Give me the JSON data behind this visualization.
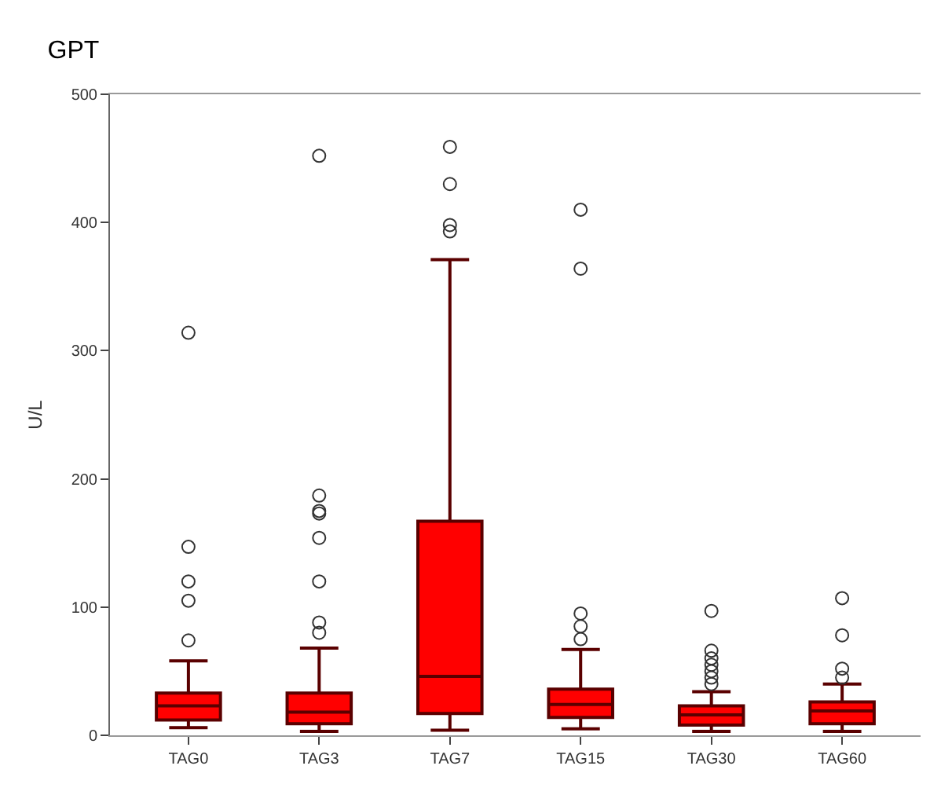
{
  "chart_data": {
    "type": "box",
    "title": "GPT",
    "ylabel": "U/L",
    "categories": [
      "TAG0",
      "TAG3",
      "TAG7",
      "TAG15",
      "TAG30",
      "TAG60"
    ],
    "color": "#ff0000",
    "boxes": [
      {
        "low": 6,
        "q1": 12,
        "median": 23,
        "q3": 33,
        "high": 58,
        "outliers": [
          74,
          105,
          120,
          147,
          314
        ]
      },
      {
        "low": 3,
        "q1": 9,
        "median": 18,
        "q3": 33,
        "high": 68,
        "outliers": [
          80,
          88,
          120,
          154,
          173,
          175,
          187,
          452
        ]
      },
      {
        "low": 4,
        "q1": 17,
        "median": 46,
        "q3": 167,
        "high": 371,
        "outliers": [
          393,
          398,
          430,
          459
        ]
      },
      {
        "low": 5,
        "q1": 14,
        "median": 24,
        "q3": 36,
        "high": 67,
        "outliers": [
          75,
          85,
          95,
          364,
          410
        ]
      },
      {
        "low": 3,
        "q1": 8,
        "median": 16,
        "q3": 23,
        "high": 34,
        "outliers": [
          40,
          45,
          50,
          55,
          60,
          66,
          97
        ]
      },
      {
        "low": 3,
        "q1": 9,
        "median": 19,
        "q3": 26,
        "high": 40,
        "outliers": [
          45,
          52,
          78,
          107
        ]
      }
    ],
    "ylim": [
      0,
      500
    ],
    "yticks": [
      0,
      100,
      200,
      300,
      400,
      500
    ]
  }
}
